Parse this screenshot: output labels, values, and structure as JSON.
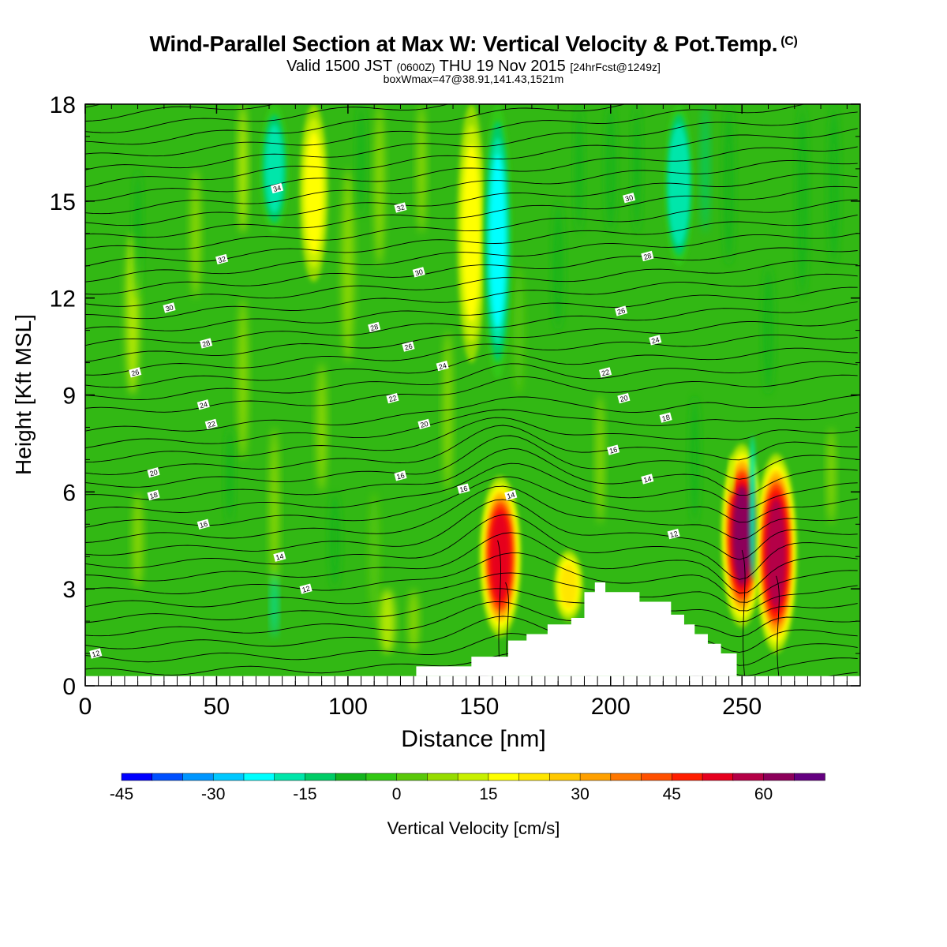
{
  "chart_data": {
    "type": "heatmap",
    "title": "Wind-Parallel Section at Max W: Vertical Velocity & Pot.Temp.",
    "title_mark": "(C)",
    "subtitle": {
      "prefix": "Valid 1500 JST",
      "zulu": "(0600Z)",
      "date": "THU 19 Nov 2015",
      "forecast": "[24hrFcst@1249z]"
    },
    "subtitle2": "boxWmax=47@38.91,141.43,1521m",
    "xlabel": "Distance [nm]",
    "ylabel": "Height [Kft MSL]",
    "xlim": [
      0,
      295
    ],
    "ylim": [
      0,
      18
    ],
    "x_ticks": [
      0,
      50,
      100,
      150,
      200,
      250
    ],
    "y_ticks": [
      0,
      3,
      6,
      9,
      12,
      15,
      18
    ],
    "colorbar": {
      "label": "Vertical Velocity [cm/s]",
      "min": -45,
      "step": 5,
      "tick_labels": [
        -45,
        -30,
        -15,
        0,
        15,
        30,
        45,
        60
      ],
      "colors": [
        "#0000ff",
        "#0050ff",
        "#0096ff",
        "#00c8ff",
        "#00ffff",
        "#00e6aa",
        "#00cc66",
        "#14b41e",
        "#32c814",
        "#5ac80a",
        "#96dc00",
        "#c8f000",
        "#ffff00",
        "#ffe600",
        "#ffc800",
        "#ffa000",
        "#ff7800",
        "#ff5000",
        "#ff1e00",
        "#e6001e",
        "#b40046",
        "#8c005a",
        "#640080"
      ]
    },
    "vertical_velocity_features": [
      {
        "x": 87,
        "y_top": 18,
        "y_bottom": 12.5,
        "w": 18,
        "kind": "updraft"
      },
      {
        "x": 72,
        "y_top": 18,
        "y_bottom": 14,
        "w": -18,
        "kind": "downdraft"
      },
      {
        "x": 147,
        "y_top": 18,
        "y_bottom": 10,
        "w": 16,
        "kind": "updraft"
      },
      {
        "x": 157,
        "y_top": 18,
        "y_bottom": 9.5,
        "w": -22,
        "kind": "downdraft"
      },
      {
        "x": 226,
        "y_top": 18,
        "y_bottom": 13,
        "w": -20,
        "kind": "downdraft"
      },
      {
        "x": 158,
        "y_top": 6.5,
        "y_bottom": 1.5,
        "w": 52,
        "kind": "updraft"
      },
      {
        "x": 184,
        "y_top": 4.2,
        "y_bottom": 2.0,
        "w": 22,
        "kind": "updraft"
      },
      {
        "x": 250,
        "y_top": 7.5,
        "y_bottom": 1.8,
        "w": 60,
        "kind": "updraft"
      },
      {
        "x": 263,
        "y_top": 7.2,
        "y_bottom": 1.0,
        "w": 57,
        "kind": "updraft"
      }
    ],
    "theta_contour_labels": [
      {
        "value": "34",
        "x": 73,
        "y": 15.4
      },
      {
        "value": "32",
        "x": 120,
        "y": 14.8
      },
      {
        "value": "30",
        "x": 207,
        "y": 15.1
      },
      {
        "value": "32",
        "x": 52,
        "y": 13.2
      },
      {
        "value": "30",
        "x": 127,
        "y": 12.8
      },
      {
        "value": "28",
        "x": 214,
        "y": 13.3
      },
      {
        "value": "30",
        "x": 32,
        "y": 11.7
      },
      {
        "value": "28",
        "x": 110,
        "y": 11.1
      },
      {
        "value": "26",
        "x": 204,
        "y": 11.6
      },
      {
        "value": "28",
        "x": 46,
        "y": 10.6
      },
      {
        "value": "26",
        "x": 123,
        "y": 10.5
      },
      {
        "value": "24",
        "x": 217,
        "y": 10.7
      },
      {
        "value": "26",
        "x": 19,
        "y": 9.7
      },
      {
        "value": "24",
        "x": 136,
        "y": 9.9
      },
      {
        "value": "22",
        "x": 198,
        "y": 9.7
      },
      {
        "value": "22",
        "x": 117,
        "y": 8.9
      },
      {
        "value": "24",
        "x": 45,
        "y": 8.7
      },
      {
        "value": "20",
        "x": 205,
        "y": 8.9
      },
      {
        "value": "22",
        "x": 48,
        "y": 8.1
      },
      {
        "value": "20",
        "x": 129,
        "y": 8.1
      },
      {
        "value": "18",
        "x": 221,
        "y": 8.3
      },
      {
        "value": "20",
        "x": 26,
        "y": 6.6
      },
      {
        "value": "16",
        "x": 120,
        "y": 6.5
      },
      {
        "value": "16",
        "x": 201,
        "y": 7.3
      },
      {
        "value": "18",
        "x": 26,
        "y": 5.9
      },
      {
        "value": "16",
        "x": 144,
        "y": 6.1
      },
      {
        "value": "14",
        "x": 162,
        "y": 5.9
      },
      {
        "value": "14",
        "x": 214,
        "y": 6.4
      },
      {
        "value": "16",
        "x": 45,
        "y": 5.0
      },
      {
        "value": "12",
        "x": 224,
        "y": 4.7
      },
      {
        "value": "14",
        "x": 74,
        "y": 4.0
      },
      {
        "value": "12",
        "x": 84,
        "y": 3.0
      },
      {
        "value": "12",
        "x": 4,
        "y": 1.0
      }
    ]
  }
}
